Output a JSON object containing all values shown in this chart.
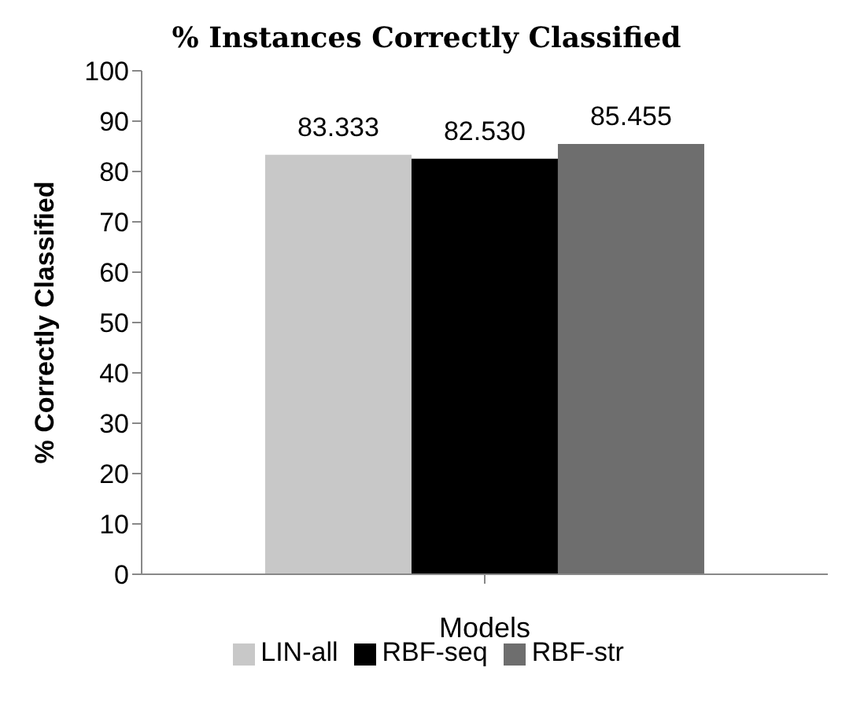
{
  "chart_data": {
    "type": "bar",
    "title": "% Instances Correctly Classified",
    "xlabel": "Models",
    "ylabel": "% Correctly Classified",
    "categories": [
      null
    ],
    "series": [
      {
        "name": "LIN-all",
        "color": "#c8c8c8",
        "values": [
          83.333
        ],
        "value_labels": [
          "83.333"
        ]
      },
      {
        "name": "RBF-seq",
        "color": "#000000",
        "values": [
          82.53
        ],
        "value_labels": [
          "82.530"
        ]
      },
      {
        "name": "RBF-str",
        "color": "#6e6e6e",
        "values": [
          85.455
        ],
        "value_labels": [
          "85.455"
        ]
      }
    ],
    "ylim": [
      0,
      100
    ],
    "yticks": [
      0,
      10,
      20,
      30,
      40,
      50,
      60,
      70,
      80,
      90,
      100
    ],
    "grid": false,
    "legend": "bottom"
  }
}
